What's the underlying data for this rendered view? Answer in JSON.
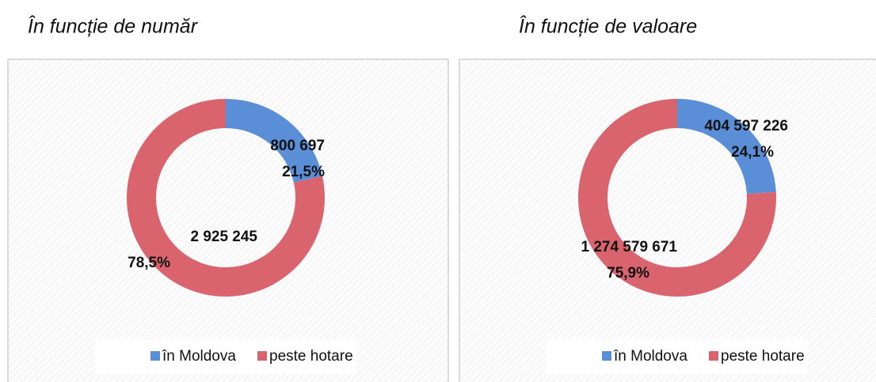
{
  "charts": [
    {
      "type": "donut",
      "title": "În funcție de număr",
      "categories": [
        "în Moldova",
        "peste hotare"
      ],
      "values": [
        800697,
        2925245
      ],
      "value_labels": [
        "800 697",
        "2 925 245"
      ],
      "percentages": [
        21.5,
        78.5
      ],
      "percentage_labels": [
        "21,5%",
        "78,5%"
      ],
      "colors": [
        "#5a8fd7",
        "#d9646d"
      ],
      "legend": "bottom"
    },
    {
      "type": "donut",
      "title": "În funcție de valoare",
      "categories": [
        "în Moldova",
        "peste hotare"
      ],
      "values": [
        404597226,
        1274579671
      ],
      "value_labels": [
        "404 597 226",
        "1 274 579 671"
      ],
      "percentages": [
        24.1,
        75.9
      ],
      "percentage_labels": [
        "24,1%",
        "75,9%"
      ],
      "colors": [
        "#5a8fd7",
        "#d9646d"
      ],
      "legend": "bottom"
    }
  ]
}
